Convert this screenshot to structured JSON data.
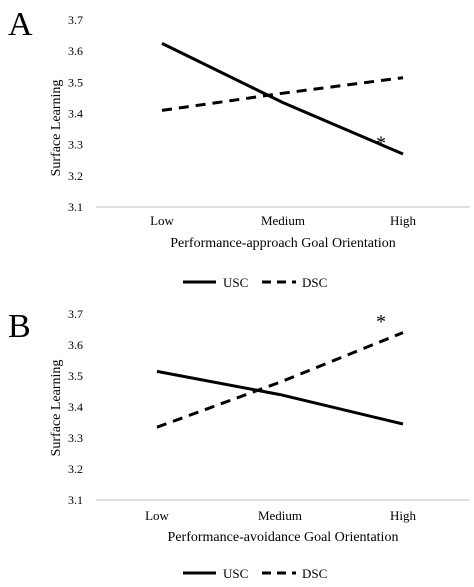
{
  "chart_data": [
    {
      "panel_label": "A",
      "type": "line",
      "categories": [
        "Low",
        "Medium",
        "High"
      ],
      "series": [
        {
          "name": "USC",
          "values": [
            3.625,
            3.435,
            3.27
          ],
          "style": "solid"
        },
        {
          "name": "DSC",
          "values": [
            3.41,
            3.465,
            3.515
          ],
          "style": "dashed"
        }
      ],
      "xlabel": "Performance-approach Goal Orientation",
      "ylabel": "Surface Learning",
      "ylim": [
        3.1,
        3.7
      ],
      "yticks": [
        "3.1",
        "3.2",
        "3.3",
        "3.4",
        "3.5",
        "3.6",
        "3.7"
      ],
      "annotations": [
        {
          "text": "*",
          "category": "High",
          "value": 3.31
        }
      ],
      "legend": "bottom",
      "grid": false
    },
    {
      "panel_label": "B",
      "type": "line",
      "categories": [
        "Low",
        "Medium",
        "High"
      ],
      "series": [
        {
          "name": "USC",
          "values": [
            3.515,
            3.44,
            3.345
          ],
          "style": "solid"
        },
        {
          "name": "DSC",
          "values": [
            3.335,
            3.48,
            3.64
          ],
          "style": "dashed"
        }
      ],
      "xlabel": "Performance-avoidance Goal Orientation",
      "ylabel": "Surface Learning",
      "ylim": [
        3.1,
        3.7
      ],
      "yticks": [
        "3.1",
        "3.2",
        "3.3",
        "3.4",
        "3.5",
        "3.6",
        "3.7"
      ],
      "annotations": [
        {
          "text": "*",
          "category": "High",
          "value": 3.68
        }
      ],
      "legend": "bottom",
      "grid": false
    }
  ],
  "colors": {
    "line": "#000000",
    "axis": "#bfbfbf"
  }
}
